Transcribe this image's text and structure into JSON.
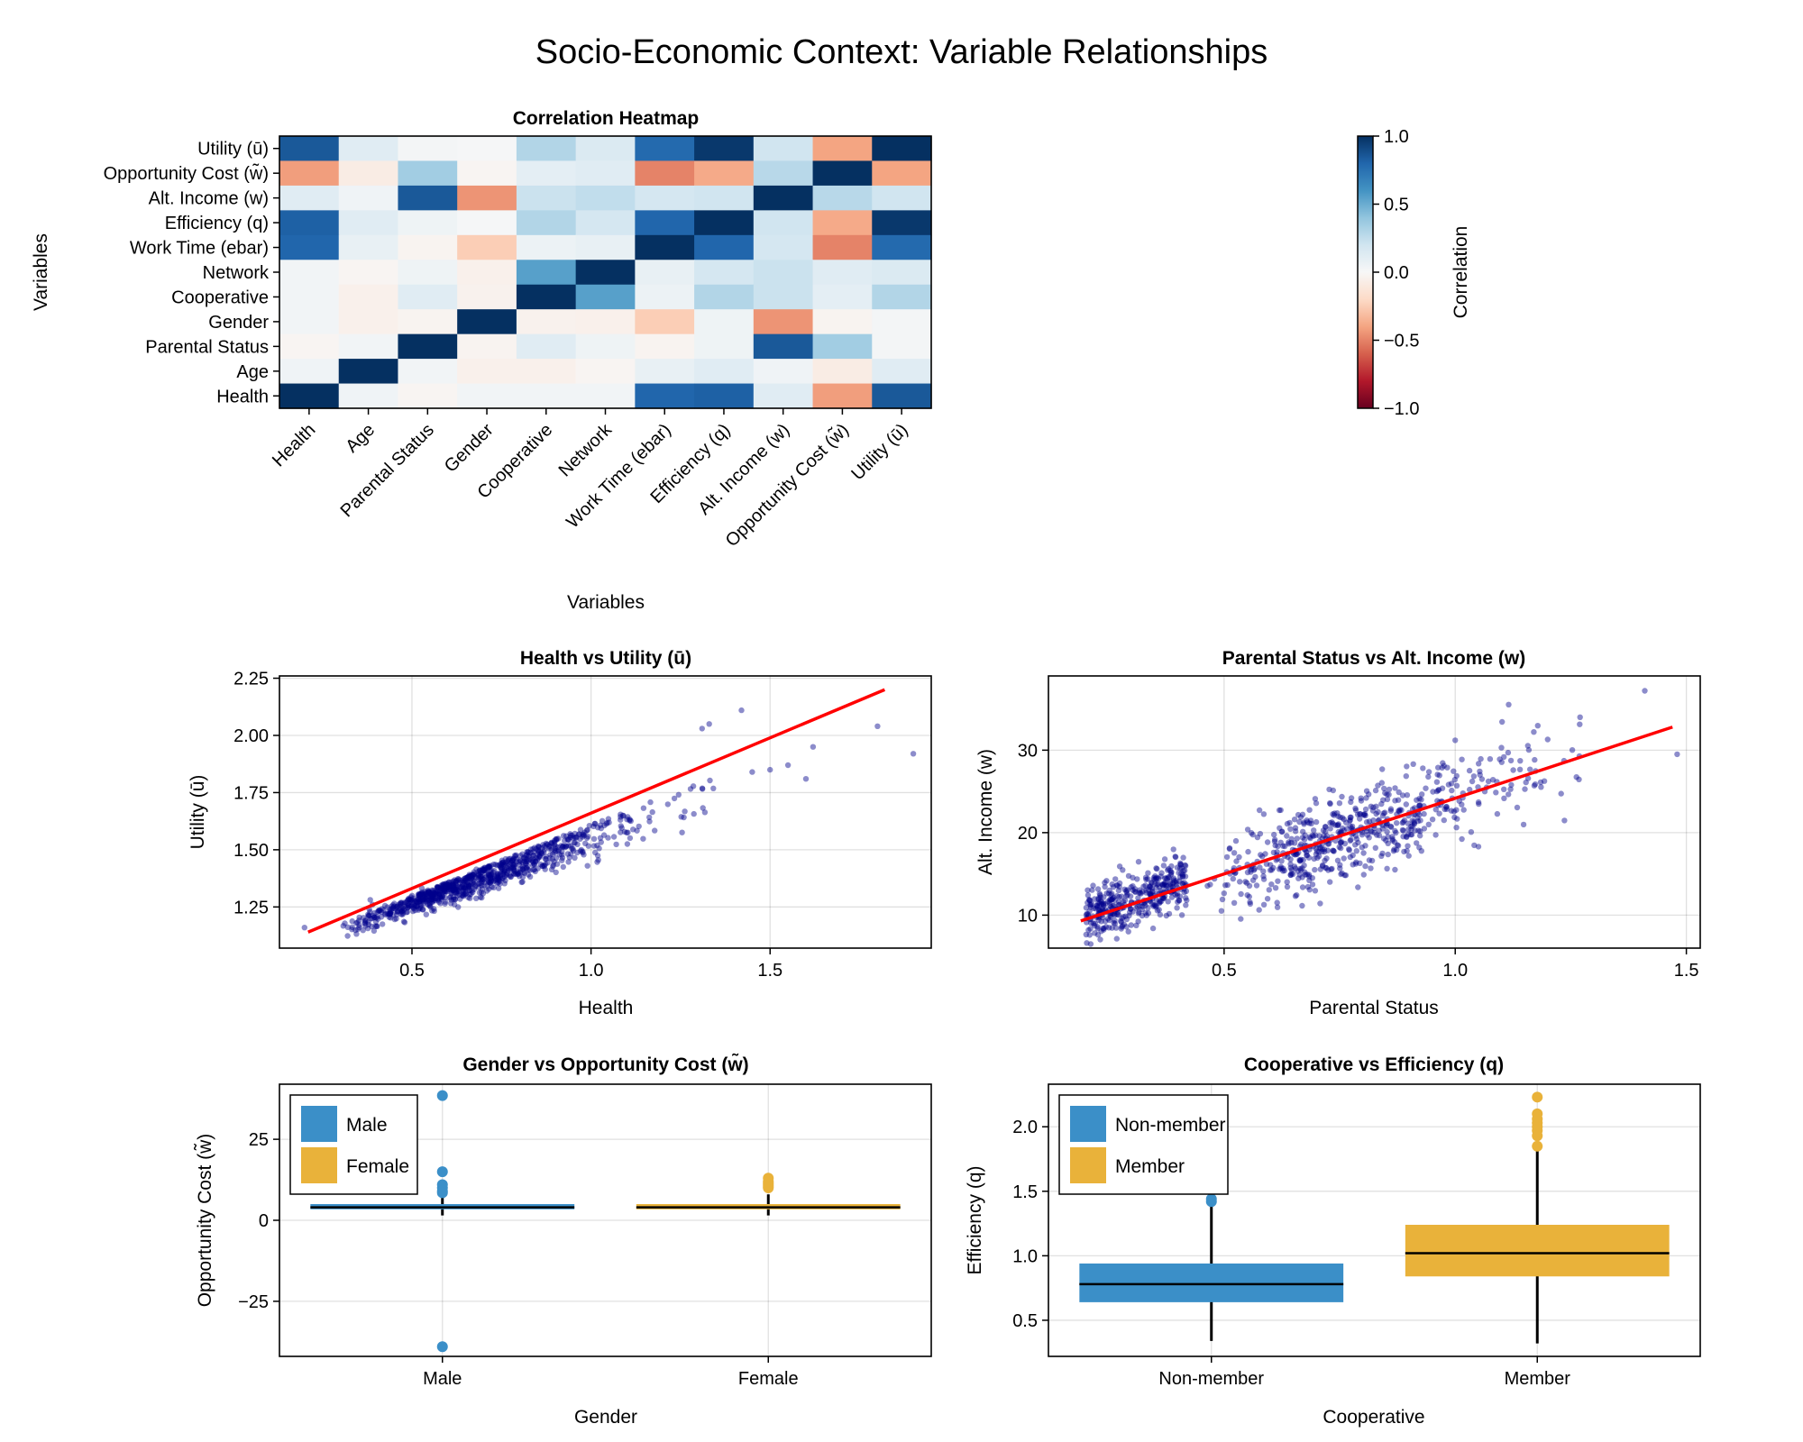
{
  "figure": {
    "title": "Socio-Economic Context: Variable Relationships"
  },
  "chart_data": [
    {
      "type": "heatmap",
      "title": "Correlation Heatmap",
      "xlabel": "Variables",
      "ylabel": "Variables",
      "x_categories": [
        "Health",
        "Age",
        "Parental Status",
        "Gender",
        "Cooperative",
        "Network",
        "Work Time (ebar)",
        "Efficiency (q)",
        "Alt. Income (w)",
        "Opportunity Cost (w̃)",
        "Utility (ū)"
      ],
      "y_categories_top_to_bottom": [
        "Utility (ū)",
        "Opportunity Cost (w̃)",
        "Alt. Income (w)",
        "Efficiency (q)",
        "Work Time (ebar)",
        "Network",
        "Cooperative",
        "Gender",
        "Parental Status",
        "Age",
        "Health"
      ],
      "values_top_to_bottom": [
        [
          0.85,
          0.12,
          0.02,
          0.01,
          0.3,
          0.15,
          0.78,
          0.97,
          0.2,
          -0.4,
          1.0
        ],
        [
          -0.42,
          -0.08,
          0.35,
          -0.02,
          0.1,
          0.12,
          -0.5,
          -0.38,
          0.28,
          1.0,
          -0.4
        ],
        [
          0.12,
          0.04,
          0.85,
          -0.45,
          0.22,
          0.25,
          0.18,
          0.2,
          1.0,
          0.28,
          0.2
        ],
        [
          0.82,
          0.12,
          0.05,
          0.01,
          0.3,
          0.18,
          0.8,
          1.0,
          0.2,
          -0.38,
          0.97
        ],
        [
          0.8,
          0.08,
          -0.03,
          -0.25,
          0.06,
          0.08,
          1.0,
          0.8,
          0.18,
          -0.5,
          0.78
        ],
        [
          0.03,
          -0.02,
          0.05,
          -0.05,
          0.55,
          1.0,
          0.08,
          0.18,
          0.22,
          0.12,
          0.15
        ],
        [
          0.03,
          -0.05,
          0.12,
          -0.04,
          1.0,
          0.55,
          0.06,
          0.3,
          0.22,
          0.1,
          0.3
        ],
        [
          0.03,
          -0.05,
          -0.03,
          1.0,
          -0.04,
          -0.05,
          -0.25,
          0.05,
          -0.45,
          -0.03,
          0.02
        ],
        [
          -0.02,
          0.03,
          1.0,
          -0.03,
          0.12,
          0.05,
          -0.03,
          0.05,
          0.85,
          0.35,
          0.02
        ],
        [
          0.04,
          1.0,
          0.03,
          -0.05,
          -0.05,
          -0.02,
          0.08,
          0.12,
          0.04,
          -0.08,
          0.12
        ],
        [
          1.0,
          0.04,
          -0.02,
          0.03,
          0.03,
          0.03,
          0.8,
          0.82,
          0.12,
          -0.42,
          0.85
        ]
      ],
      "colorbar": {
        "label": "Correlation",
        "range": [
          -1.0,
          1.0
        ],
        "ticks": [
          "1.0",
          "0.5",
          "0.0",
          "−0.5",
          "−1.0"
        ],
        "colormap": "RdBu"
      }
    },
    {
      "type": "scatter",
      "title": "Health vs Utility (ū)",
      "xlabel": "Health",
      "ylabel": "Utility (ū)",
      "xlim": [
        0.13,
        1.95
      ],
      "ylim": [
        1.07,
        2.26
      ],
      "xticks": [
        "0.5",
        "1.0",
        "1.5"
      ],
      "yticks": [
        "1.25",
        "1.50",
        "1.75",
        "2.00",
        "2.25"
      ],
      "points": [
        [
          0.2,
          1.16
        ],
        [
          1.42,
          2.11
        ],
        [
          1.33,
          2.05
        ],
        [
          1.31,
          2.03
        ],
        [
          1.8,
          2.04
        ],
        [
          1.9,
          1.92
        ],
        [
          1.62,
          1.95
        ],
        [
          1.55,
          1.87
        ],
        [
          1.6,
          1.81
        ],
        [
          1.5,
          1.85
        ],
        [
          1.45,
          1.84
        ]
      ],
      "point_color": "#00008b",
      "fit_line": {
        "x": [
          0.21,
          1.82
        ],
        "y": [
          1.14,
          2.2
        ],
        "color": "#ff0000"
      }
    },
    {
      "type": "scatter",
      "title": "Parental Status vs Alt. Income (w)",
      "xlabel": "Parental Status",
      "ylabel": "Alt. Income (w)",
      "xlim": [
        0.12,
        1.53
      ],
      "ylim": [
        6,
        39
      ],
      "xticks": [
        "0.5",
        "1.0",
        "1.5"
      ],
      "yticks": [
        "10",
        "20",
        "30"
      ],
      "points": [
        [
          1.41,
          37.2
        ],
        [
          1.48,
          29.5
        ],
        [
          1.27,
          34.0
        ],
        [
          1.2,
          31.3
        ],
        [
          1.17,
          32.2
        ],
        [
          1.0,
          31.2
        ],
        [
          1.1,
          30.3
        ]
      ],
      "point_color": "#00008b",
      "fit_line": {
        "x": [
          0.19,
          1.47
        ],
        "y": [
          9.3,
          32.8
        ],
        "color": "#ff0000"
      }
    },
    {
      "type": "box",
      "title": "Gender vs Opportunity Cost (w̃)",
      "xlabel": "Gender",
      "ylabel": "Opportunity Cost (w̃)",
      "categories": [
        "Male",
        "Female"
      ],
      "ylim": [
        -42,
        42
      ],
      "yticks": [
        "25",
        "0",
        "−25"
      ],
      "series": [
        {
          "name": "Male",
          "color": "#3b8fc8",
          "q1": 3.4,
          "median": 4.0,
          "q3": 5.0,
          "whisker_low": 1.5,
          "whisker_high": 7.0,
          "outliers": [
            38.5,
            -39,
            15,
            11,
            10,
            9,
            8.5
          ]
        },
        {
          "name": "Female",
          "color": "#e9b23a",
          "q1": 3.4,
          "median": 4.0,
          "q3": 5.0,
          "whisker_low": 1.5,
          "whisker_high": 8.0,
          "outliers": [
            13,
            12,
            11.5,
            11,
            10.5,
            10
          ]
        }
      ],
      "legend": {
        "placement": "top-left",
        "entries": [
          "Male",
          "Female"
        ]
      }
    },
    {
      "type": "box",
      "title": "Cooperative vs Efficiency (q)",
      "xlabel": "Cooperative",
      "ylabel": "Efficiency (q)",
      "categories": [
        "Non-member",
        "Member"
      ],
      "ylim": [
        0.22,
        2.33
      ],
      "yticks": [
        "0.5",
        "1.0",
        "1.5",
        "2.0"
      ],
      "series": [
        {
          "name": "Non-member",
          "color": "#3b8fc8",
          "q1": 0.64,
          "median": 0.78,
          "q3": 0.94,
          "whisker_low": 0.34,
          "whisker_high": 1.4,
          "outliers": [
            1.42,
            1.44
          ]
        },
        {
          "name": "Member",
          "color": "#e9b23a",
          "q1": 0.84,
          "median": 1.02,
          "q3": 1.24,
          "whisker_low": 0.32,
          "whisker_high": 1.82,
          "outliers": [
            2.23,
            2.1,
            2.06,
            2.03,
            2.0,
            1.97,
            1.93,
            1.85
          ]
        }
      ],
      "legend": {
        "placement": "top-left",
        "entries": [
          "Non-member",
          "Member"
        ]
      }
    }
  ]
}
